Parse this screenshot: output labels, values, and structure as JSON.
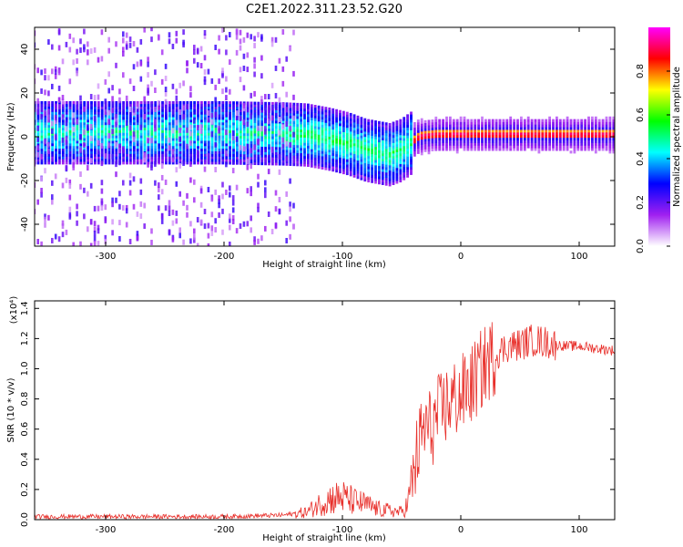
{
  "figure": {
    "title": "C2E1.2022.311.23.52.G20"
  },
  "chart_data": [
    {
      "type": "heatmap",
      "title": "C2E1.2022.311.23.52.G20",
      "xlabel": "Height of straight line (km)",
      "ylabel": "Frequency (Hz)",
      "xlim": [
        -360,
        130
      ],
      "ylim": [
        -50,
        50
      ],
      "xticks": [
        -300,
        -200,
        -100,
        0,
        100
      ],
      "yticks": [
        -40,
        -20,
        0,
        20,
        40
      ],
      "colorbar": {
        "label": "Normalized spectral amplitude",
        "range": [
          0.0,
          1.0
        ],
        "ticks": [
          "0.0",
          "0.2",
          "0.4",
          "0.6",
          "0.8"
        ],
        "colors": [
          "#ffffff",
          "#a020f0",
          "#0000ff",
          "#00ffff",
          "#00ff00",
          "#ffff00",
          "#ff0000",
          "#ff00ff"
        ]
      },
      "center_frequency_track": {
        "x": [
          -300,
          -250,
          -200,
          -150,
          -130,
          -110,
          -95,
          -80,
          -70,
          -60,
          -50,
          -40,
          -35,
          -30,
          -20,
          0,
          50,
          100,
          130
        ],
        "y": [
          2,
          2,
          2,
          1.5,
          1,
          -1,
          -3,
          -6,
          -7,
          -8,
          -6,
          -2,
          0,
          0.5,
          1,
          1,
          1,
          1,
          1
        ]
      }
    },
    {
      "type": "line",
      "xlabel": "Height of straight line (km)",
      "ylabel": "SNR (10 * v/v)",
      "y_multiplier": "(x10⁴)",
      "xlim": [
        -360,
        130
      ],
      "ylim": [
        0,
        1.45
      ],
      "xticks": [
        -300,
        -200,
        -100,
        0,
        100
      ],
      "yticks": [
        "0.0",
        "0.2",
        "0.4",
        "0.6",
        "0.8",
        "1.0",
        "1.2",
        "1.4"
      ],
      "series": [
        {
          "color": "#e8302b",
          "x": [
            -360,
            -300,
            -200,
            -150,
            -130,
            -120,
            -110,
            -100,
            -90,
            -80,
            -70,
            -60,
            -50,
            -45,
            -40,
            -35,
            -30,
            -25,
            -20,
            -10,
            0,
            10,
            20,
            30,
            40,
            50,
            60,
            70,
            80,
            90,
            100,
            110,
            120,
            130
          ],
          "y": [
            0.02,
            0.02,
            0.02,
            0.03,
            0.05,
            0.1,
            0.14,
            0.15,
            0.12,
            0.1,
            0.07,
            0.06,
            0.05,
            0.1,
            0.3,
            0.5,
            0.62,
            0.6,
            0.68,
            0.78,
            0.82,
            0.9,
            1.02,
            1.1,
            1.15,
            1.16,
            1.19,
            1.18,
            1.16,
            1.15,
            1.15,
            1.14,
            1.13,
            1.12
          ]
        }
      ]
    }
  ]
}
